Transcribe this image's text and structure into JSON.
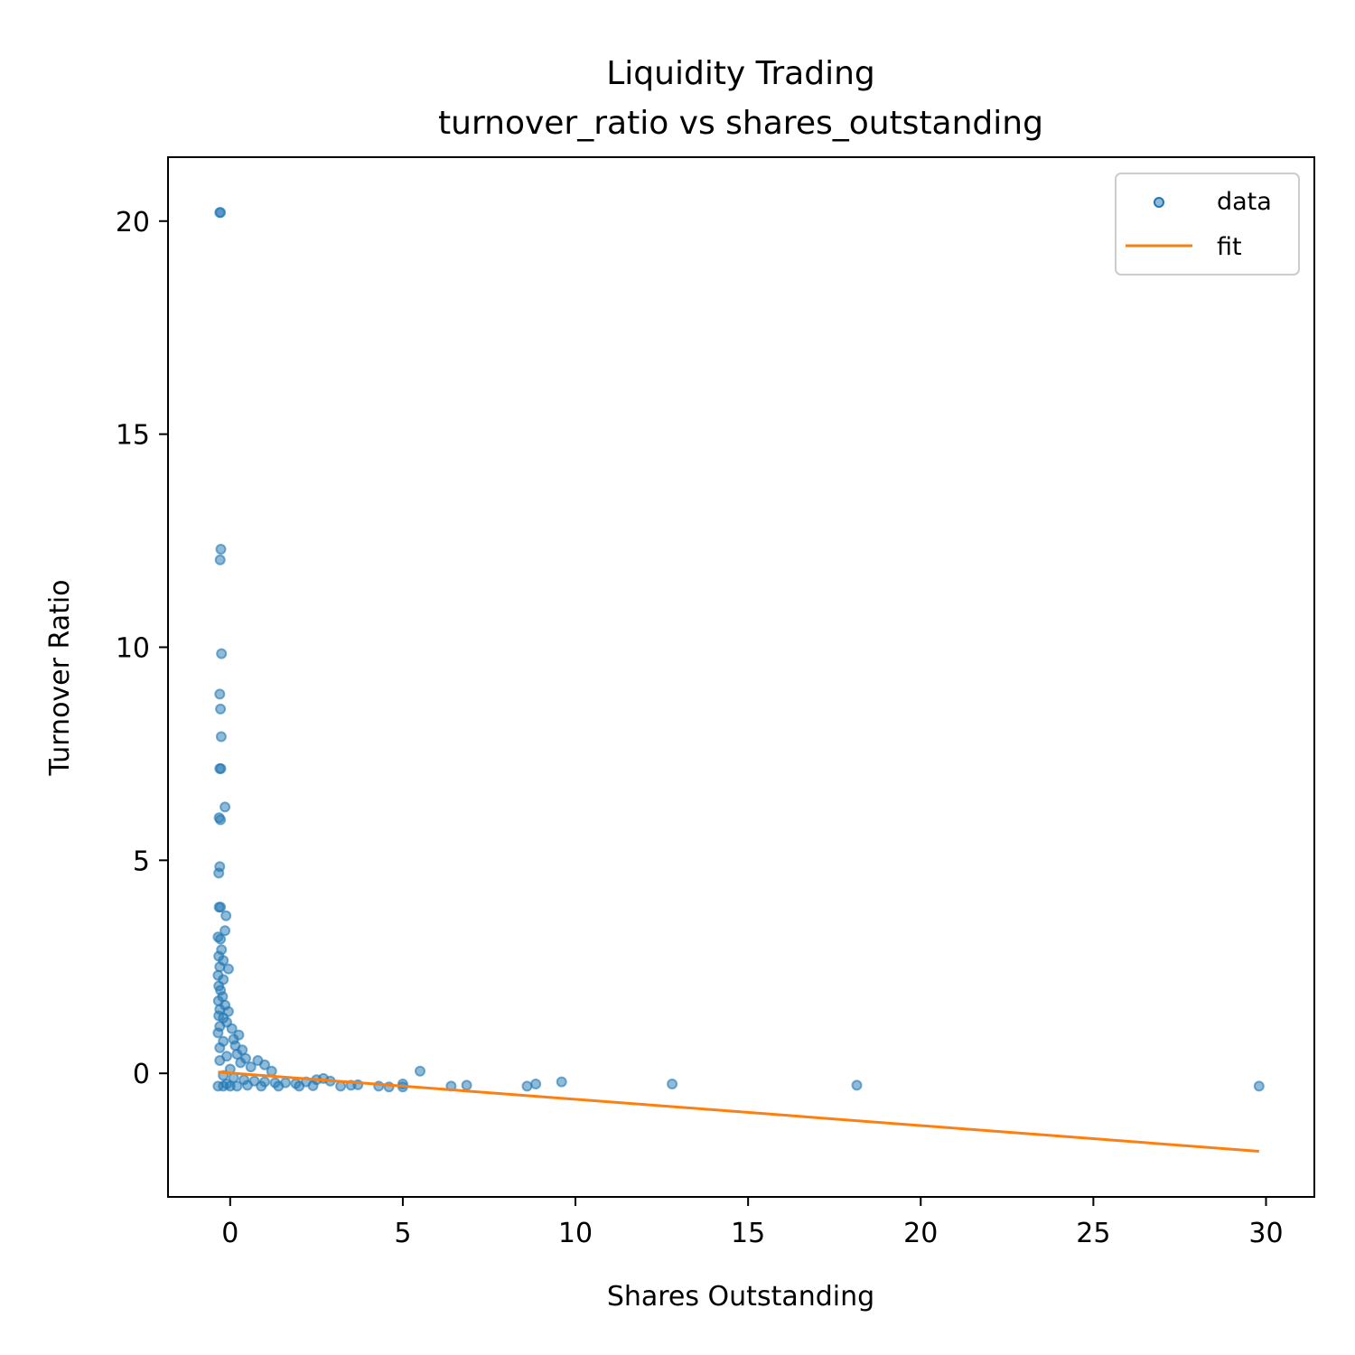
{
  "chart_data": {
    "type": "scatter",
    "title": "Liquidity Trading",
    "subtitle": "turnover_ratio vs shares_outstanding",
    "xlabel": "Shares Outstanding",
    "ylabel": "Turnover Ratio",
    "xlim": [
      -1.8,
      31.4
    ],
    "ylim": [
      -2.9,
      21.5
    ],
    "xticks": [
      0,
      5,
      10,
      15,
      20,
      25,
      30
    ],
    "yticks": [
      0,
      5,
      10,
      15,
      20
    ],
    "xtick_labels": [
      "0",
      "5",
      "10",
      "15",
      "20",
      "25",
      "30"
    ],
    "ytick_labels": [
      "0",
      "5",
      "10",
      "15",
      "20"
    ],
    "grid": false,
    "legend": {
      "position": "top-right",
      "entries": [
        {
          "label": "data",
          "kind": "marker",
          "color": "#1f77b4"
        },
        {
          "label": "fit",
          "kind": "line",
          "color": "#ff7f0e"
        }
      ]
    },
    "series": [
      {
        "name": "data",
        "kind": "scatter",
        "color": "#1f77b4",
        "points": [
          [
            -0.3,
            20.2
          ],
          [
            -0.28,
            20.2
          ],
          [
            -0.27,
            12.3
          ],
          [
            -0.29,
            12.05
          ],
          [
            -0.25,
            9.85
          ],
          [
            -0.3,
            8.9
          ],
          [
            -0.28,
            8.55
          ],
          [
            -0.26,
            7.9
          ],
          [
            -0.3,
            7.15
          ],
          [
            -0.27,
            7.15
          ],
          [
            -0.15,
            6.25
          ],
          [
            -0.32,
            6.0
          ],
          [
            -0.28,
            5.95
          ],
          [
            -0.3,
            4.85
          ],
          [
            -0.33,
            4.7
          ],
          [
            -0.32,
            3.9
          ],
          [
            -0.28,
            3.9
          ],
          [
            -0.12,
            3.7
          ],
          [
            -0.15,
            3.35
          ],
          [
            -0.35,
            3.2
          ],
          [
            -0.28,
            3.15
          ],
          [
            -0.25,
            2.9
          ],
          [
            -0.33,
            2.75
          ],
          [
            -0.2,
            2.65
          ],
          [
            -0.3,
            2.5
          ],
          [
            -0.05,
            2.45
          ],
          [
            -0.35,
            2.3
          ],
          [
            -0.2,
            2.2
          ],
          [
            -0.33,
            2.05
          ],
          [
            -0.28,
            1.95
          ],
          [
            -0.22,
            1.8
          ],
          [
            -0.34,
            1.7
          ],
          [
            -0.15,
            1.6
          ],
          [
            -0.3,
            1.5
          ],
          [
            -0.05,
            1.45
          ],
          [
            -0.33,
            1.35
          ],
          [
            -0.2,
            1.3
          ],
          [
            -0.1,
            1.2
          ],
          [
            -0.3,
            1.1
          ],
          [
            0.05,
            1.05
          ],
          [
            -0.35,
            0.95
          ],
          [
            0.25,
            0.9
          ],
          [
            0.1,
            0.8
          ],
          [
            -0.2,
            0.75
          ],
          [
            0.15,
            0.65
          ],
          [
            -0.3,
            0.6
          ],
          [
            0.35,
            0.55
          ],
          [
            0.2,
            0.45
          ],
          [
            0.45,
            0.35
          ],
          [
            0.8,
            0.3
          ],
          [
            1.0,
            0.2
          ],
          [
            -0.1,
            0.4
          ],
          [
            0.3,
            0.25
          ],
          [
            0.6,
            0.15
          ],
          [
            1.2,
            0.05
          ],
          [
            -0.3,
            0.3
          ],
          [
            0.0,
            0.1
          ],
          [
            -0.2,
            -0.05
          ],
          [
            0.1,
            -0.1
          ],
          [
            0.4,
            -0.15
          ],
          [
            0.7,
            -0.18
          ],
          [
            1.0,
            -0.2
          ],
          [
            1.3,
            -0.22
          ],
          [
            1.6,
            -0.22
          ],
          [
            1.9,
            -0.24
          ],
          [
            2.2,
            -0.2
          ],
          [
            2.5,
            -0.15
          ],
          [
            2.7,
            -0.12
          ],
          [
            2.9,
            -0.18
          ],
          [
            3.2,
            -0.3
          ],
          [
            3.5,
            -0.28
          ],
          [
            3.7,
            -0.27
          ],
          [
            4.3,
            -0.3
          ],
          [
            4.6,
            -0.32
          ],
          [
            5.0,
            -0.25
          ],
          [
            5.0,
            -0.32
          ],
          [
            5.5,
            0.05
          ],
          [
            6.4,
            -0.3
          ],
          [
            6.85,
            -0.28
          ],
          [
            8.6,
            -0.3
          ],
          [
            8.85,
            -0.25
          ],
          [
            9.6,
            -0.2
          ],
          [
            12.8,
            -0.25
          ],
          [
            18.15,
            -0.28
          ],
          [
            29.8,
            -0.3
          ],
          [
            -0.35,
            -0.3
          ],
          [
            -0.2,
            -0.3
          ],
          [
            0.0,
            -0.3
          ],
          [
            0.2,
            -0.3
          ],
          [
            0.5,
            -0.28
          ],
          [
            0.9,
            -0.3
          ],
          [
            1.4,
            -0.3
          ],
          [
            2.0,
            -0.3
          ],
          [
            2.4,
            -0.29
          ],
          [
            -0.1,
            -0.25
          ]
        ]
      },
      {
        "name": "fit",
        "kind": "line",
        "color": "#ff7f0e",
        "x": [
          -0.35,
          29.8
        ],
        "y": [
          0.03,
          -1.83
        ]
      }
    ]
  }
}
